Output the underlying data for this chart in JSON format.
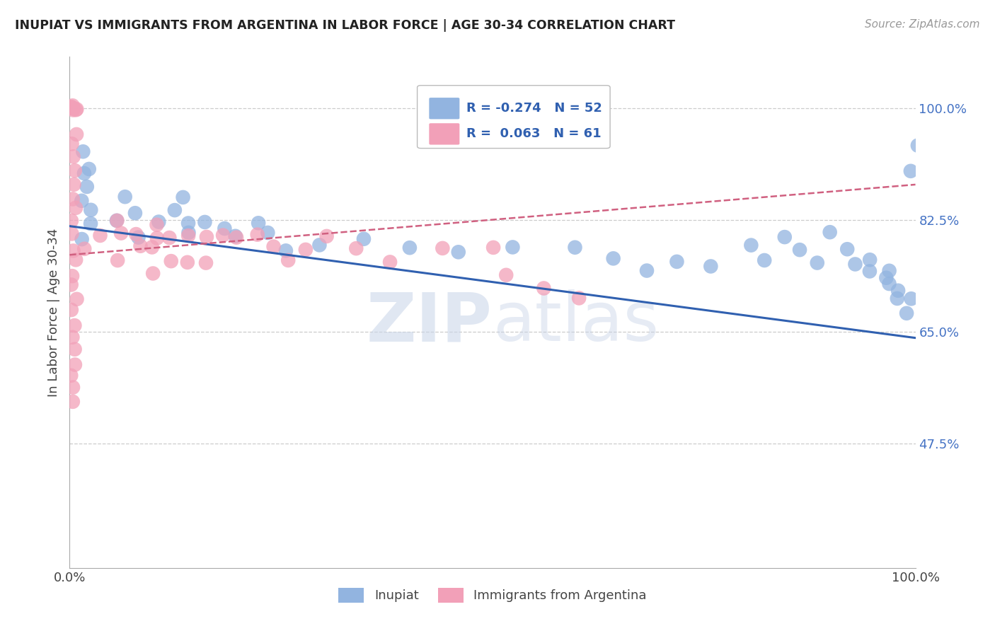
{
  "title": "INUPIAT VS IMMIGRANTS FROM ARGENTINA IN LABOR FORCE | AGE 30-34 CORRELATION CHART",
  "source": "Source: ZipAtlas.com",
  "ylabel": "In Labor Force | Age 30-34",
  "xlim": [
    0.0,
    1.0
  ],
  "ylim": [
    0.28,
    1.08
  ],
  "watermark": "ZIPatlas",
  "color_inupiat": "#92b4e0",
  "color_argentina": "#f2a0b8",
  "color_line_inupiat": "#3060b0",
  "color_line_argentina": "#d06080",
  "background_color": "#ffffff",
  "grid_color": "#cccccc",
  "title_color": "#222222",
  "axis_label_color": "#4472c4",
  "inupiat_x": [
    0.02,
    0.02,
    0.02,
    0.02,
    0.02,
    0.02,
    0.02,
    0.02,
    0.06,
    0.06,
    0.08,
    0.08,
    0.1,
    0.12,
    0.14,
    0.14,
    0.14,
    0.16,
    0.18,
    0.2,
    0.22,
    0.24,
    0.26,
    0.3,
    0.35,
    0.4,
    0.46,
    0.52,
    0.6,
    0.64,
    0.68,
    0.72,
    0.76,
    0.8,
    0.82,
    0.84,
    0.86,
    0.88,
    0.9,
    0.92,
    0.93,
    0.94,
    0.95,
    0.96,
    0.97,
    0.97,
    0.98,
    0.98,
    0.99,
    1.0,
    1.0,
    1.0
  ],
  "inupiat_y": [
    0.93,
    0.91,
    0.9,
    0.88,
    0.86,
    0.84,
    0.82,
    0.8,
    0.86,
    0.82,
    0.84,
    0.8,
    0.82,
    0.84,
    0.86,
    0.82,
    0.8,
    0.82,
    0.81,
    0.8,
    0.82,
    0.8,
    0.78,
    0.78,
    0.8,
    0.78,
    0.78,
    0.78,
    0.78,
    0.76,
    0.74,
    0.76,
    0.75,
    0.78,
    0.76,
    0.8,
    0.78,
    0.76,
    0.8,
    0.78,
    0.75,
    0.74,
    0.76,
    0.74,
    0.72,
    0.74,
    0.72,
    0.7,
    0.68,
    0.9,
    0.7,
    0.94
  ],
  "argentina_x": [
    0.005,
    0.005,
    0.005,
    0.005,
    0.005,
    0.005,
    0.005,
    0.005,
    0.005,
    0.005,
    0.005,
    0.005,
    0.005,
    0.005,
    0.005,
    0.005,
    0.005,
    0.005,
    0.005,
    0.005,
    0.005,
    0.005,
    0.005,
    0.005,
    0.005,
    0.005,
    0.005,
    0.005,
    0.005,
    0.005,
    0.02,
    0.04,
    0.06,
    0.06,
    0.06,
    0.08,
    0.08,
    0.1,
    0.1,
    0.1,
    0.1,
    0.12,
    0.12,
    0.14,
    0.14,
    0.16,
    0.16,
    0.18,
    0.2,
    0.22,
    0.24,
    0.26,
    0.28,
    0.3,
    0.34,
    0.38,
    0.44,
    0.5,
    0.52,
    0.56,
    0.6
  ],
  "argentina_y": [
    1.0,
    1.0,
    1.0,
    1.0,
    1.0,
    1.0,
    1.0,
    1.0,
    0.96,
    0.94,
    0.92,
    0.9,
    0.88,
    0.86,
    0.84,
    0.82,
    0.8,
    0.78,
    0.76,
    0.74,
    0.72,
    0.7,
    0.68,
    0.66,
    0.64,
    0.62,
    0.6,
    0.58,
    0.56,
    0.54,
    0.78,
    0.8,
    0.82,
    0.8,
    0.76,
    0.8,
    0.78,
    0.82,
    0.8,
    0.78,
    0.74,
    0.8,
    0.76,
    0.8,
    0.76,
    0.8,
    0.76,
    0.8,
    0.8,
    0.8,
    0.78,
    0.76,
    0.78,
    0.8,
    0.78,
    0.76,
    0.78,
    0.78,
    0.74,
    0.72,
    0.7
  ],
  "inupiat_trend_x": [
    0.0,
    1.0
  ],
  "inupiat_trend_y": [
    0.815,
    0.64
  ],
  "argentina_trend_x": [
    0.0,
    1.0
  ],
  "argentina_trend_y": [
    0.77,
    0.88
  ],
  "ytick_positions": [
    0.475,
    0.65,
    0.825,
    1.0
  ],
  "ytick_labels": [
    "47.5%",
    "65.0%",
    "82.5%",
    "100.0%"
  ]
}
